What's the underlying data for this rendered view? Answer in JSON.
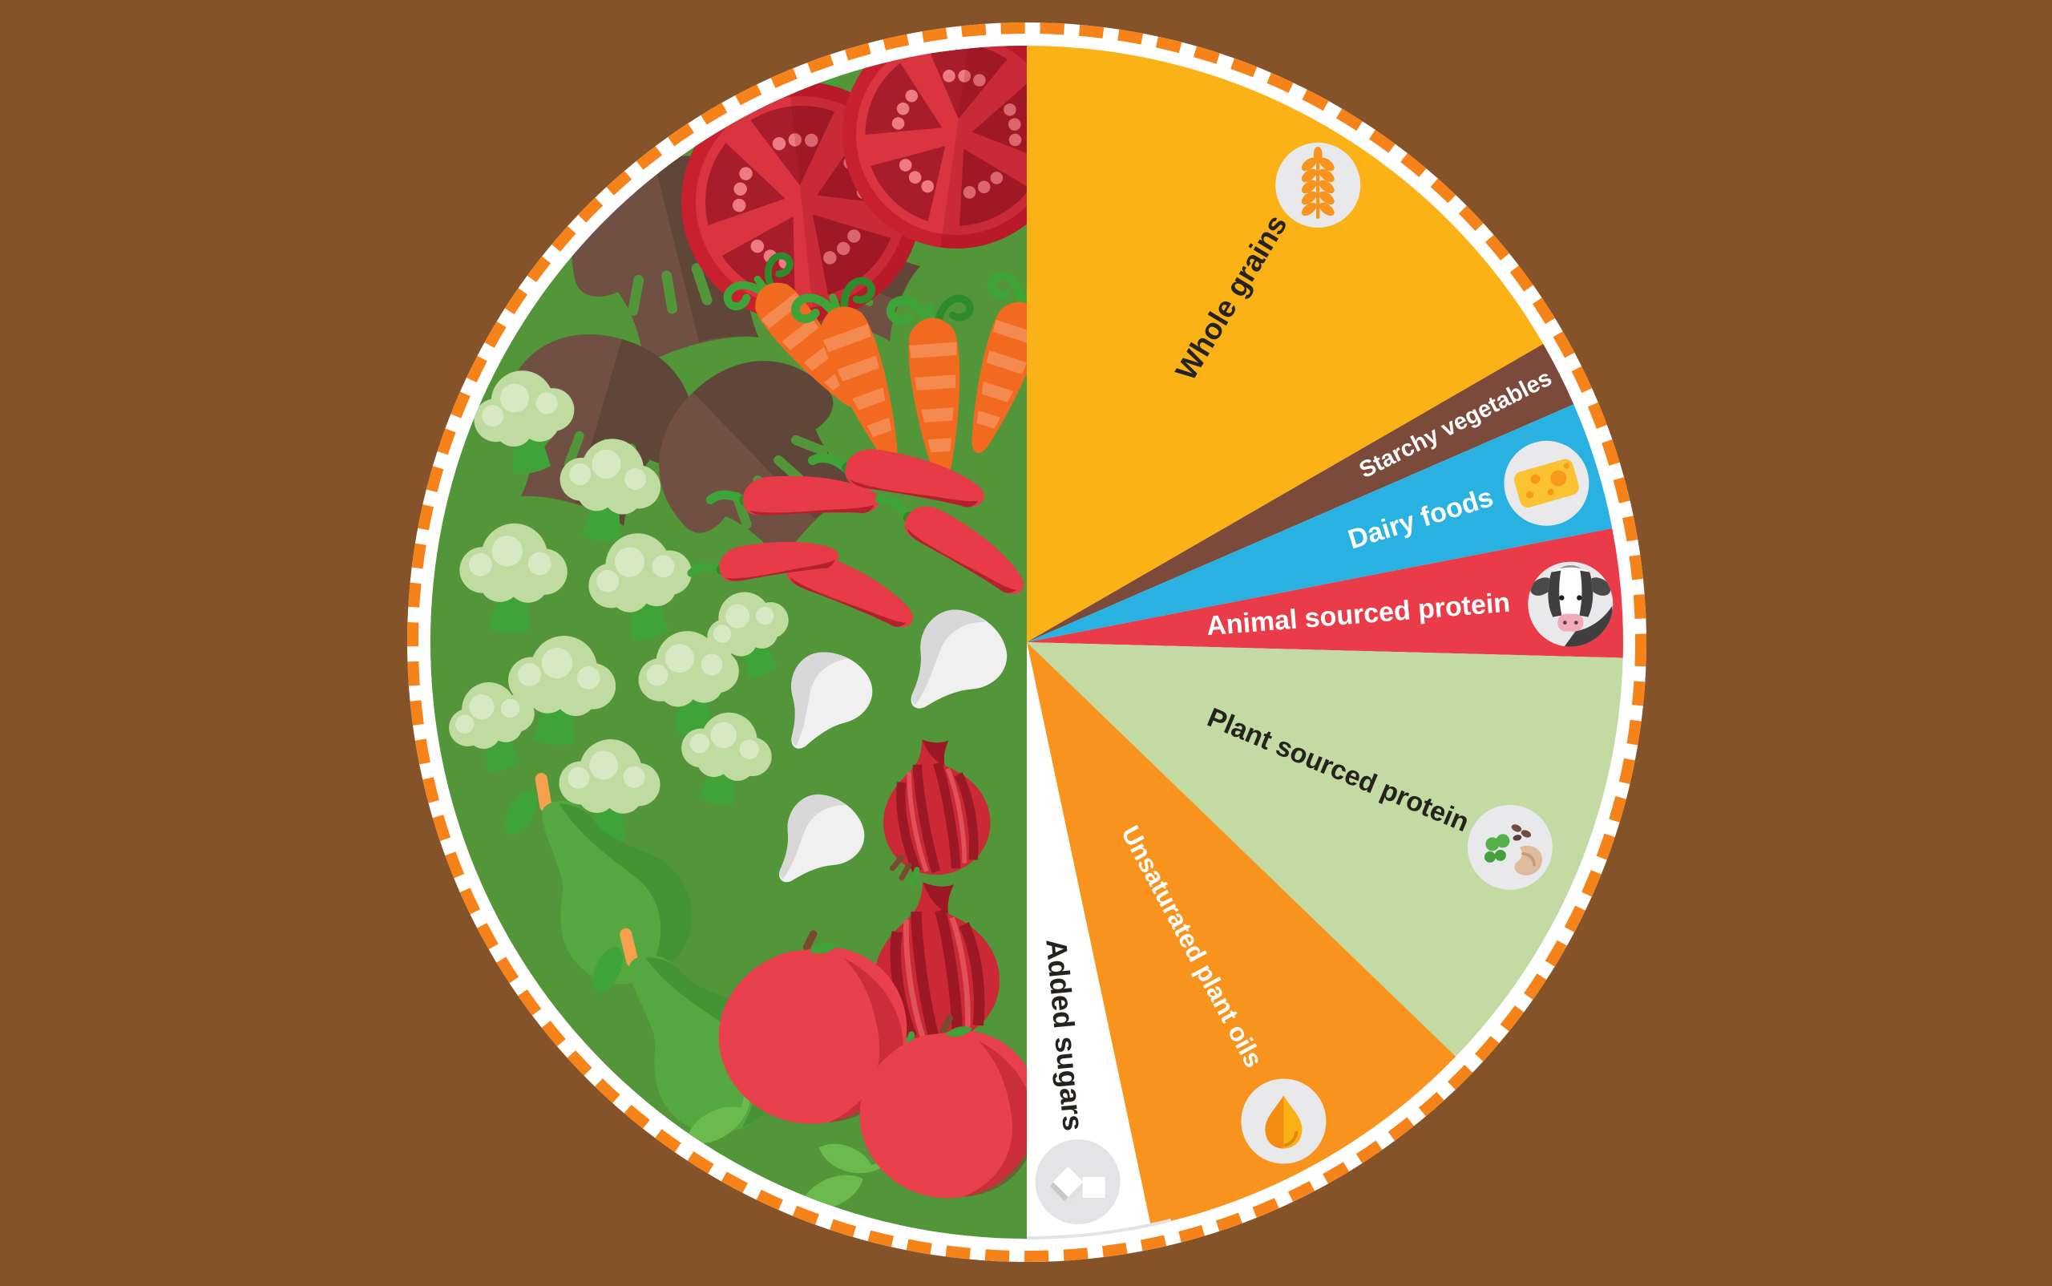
{
  "canvas": {
    "background_color": "#84532A"
  },
  "plate": {
    "ring_color": "#FFFFFF",
    "dashed_border_color": "#F6821A",
    "icon_circle_color": "#E9E9EC",
    "icon_circle_color_on_white": "#E4E4E6",
    "label_dark_color": "#26231F",
    "label_light_color": "#FFFFFF"
  },
  "chart_data": {
    "type": "pie",
    "title": "",
    "legend_position": "labels-on-segments",
    "angle_convention": "degrees clockwise from 12 o'clock",
    "segments": [
      {
        "id": "whole-grains",
        "label": "Whole grains",
        "color": "#FBB216",
        "start_angle": 0,
        "end_angle": 60,
        "share_pct": 16.7,
        "label_color": "#26231F",
        "icon": "wheat-ear",
        "label_angle": 31,
        "label_r": 500,
        "label_size": 37,
        "icon_angle": 32.5,
        "icon_r": 676
      },
      {
        "id": "starchy-vegetables",
        "label": "Starchy vegetables",
        "color": "#7B4A3B",
        "start_angle": 60,
        "end_angle": 66.5,
        "share_pct": 1.8,
        "label_color": "#FFFFFF",
        "icon": null,
        "label_angle": 63.2,
        "label_r": 600,
        "label_size": 29
      },
      {
        "id": "dairy-foods",
        "label": "Dairy foods",
        "color": "#29B1E1",
        "start_angle": 66.5,
        "end_angle": 79,
        "share_pct": 3.5,
        "label_color": "#FFFFFF",
        "icon": "cheese-wedge",
        "label_angle": 72.8,
        "label_r": 515,
        "label_size": 34,
        "icon_angle": 73,
        "icon_r": 678
      },
      {
        "id": "animal-sourced-protein",
        "label": "Animal sourced protein",
        "color": "#E93C48",
        "start_angle": 79,
        "end_angle": 91.5,
        "share_pct": 3.5,
        "label_color": "#FFFFFF",
        "icon": "cow-face",
        "label_angle": 85.5,
        "label_r": 415,
        "label_size": 34,
        "icon_angle": 86,
        "icon_r": 680
      },
      {
        "id": "plant-sourced-protein",
        "label": "Plant sourced protein",
        "color": "#C3DAA3",
        "start_angle": 91.5,
        "end_angle": 134,
        "share_pct": 11.8,
        "label_color": "#26231F",
        "icon": "beans-and-peas",
        "label_angle": 112.6,
        "label_r": 420,
        "label_size": 34,
        "icon_angle": 113,
        "icon_r": 655
      },
      {
        "id": "unsaturated-plant-oils",
        "label": "Unsaturated plant oils",
        "color": "#F8941D",
        "start_angle": 134,
        "end_angle": 168,
        "share_pct": 9.4,
        "label_color": "#FFFFFF",
        "icon": "oil-drop",
        "label_angle": 151.8,
        "label_r": 432,
        "label_size": 32,
        "icon_angle": 151.8,
        "icon_r": 678
      },
      {
        "id": "added-sugars",
        "label": "Added sugars",
        "color": "#FFFFFF",
        "start_angle": 168,
        "end_angle": 180,
        "share_pct": 3.3,
        "label_color": "#26231F",
        "icon": "sugar-cubes",
        "label_angle": 174.8,
        "label_r": 492,
        "label_size": 36,
        "icon_angle": 174.6,
        "icon_r": 676
      },
      {
        "id": "fruits-and-vegetables",
        "label": "",
        "color": "#529639",
        "start_angle": 180,
        "end_angle": 360,
        "share_pct": 50,
        "illustrated": true,
        "depicts": [
          "tomatoes",
          "carrots",
          "mushrooms",
          "chili peppers",
          "broccoli",
          "garlic",
          "red onions",
          "pears",
          "apples",
          "leaves"
        ]
      }
    ]
  }
}
